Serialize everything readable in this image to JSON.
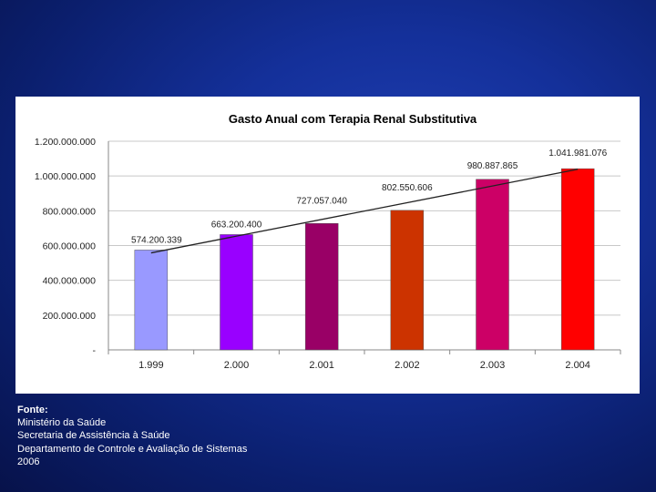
{
  "chart_data": {
    "type": "bar",
    "title": "Gasto Anual com Terapia Renal Substitutiva",
    "categories": [
      "1.999",
      "2.000",
      "2.001",
      "2.002",
      "2.003",
      "2.004"
    ],
    "values": [
      574200339,
      663200400,
      727057040,
      802550606,
      980887865,
      1041981076
    ],
    "data_labels": [
      "574.200.339",
      "663.200.400",
      "727.057.040",
      "802.550.606",
      "980.887.865",
      "1.041.981.076"
    ],
    "bar_colors": [
      "#9999ff",
      "#9900ff",
      "#990066",
      "#cc3300",
      "#cc0066",
      "#ff0000"
    ],
    "trendline": true,
    "ylim": [
      0,
      1200000000
    ],
    "y_ticks": [
      0,
      200000000,
      400000000,
      600000000,
      800000000,
      1000000000,
      1200000000
    ],
    "y_tick_labels": [
      "-",
      "200.000.000",
      "400.000.000",
      "600.000.000",
      "800.000.000",
      "1.000.000.000",
      "1.200.000.000"
    ],
    "grid": true,
    "xlabel": "",
    "ylabel": ""
  },
  "source": {
    "label": "Fonte:",
    "lines": [
      "Ministério da Saúde",
      "Secretaria de Assistência à Saúde",
      "Departamento de Controle e Avaliação de Sistemas",
      "2006"
    ]
  }
}
